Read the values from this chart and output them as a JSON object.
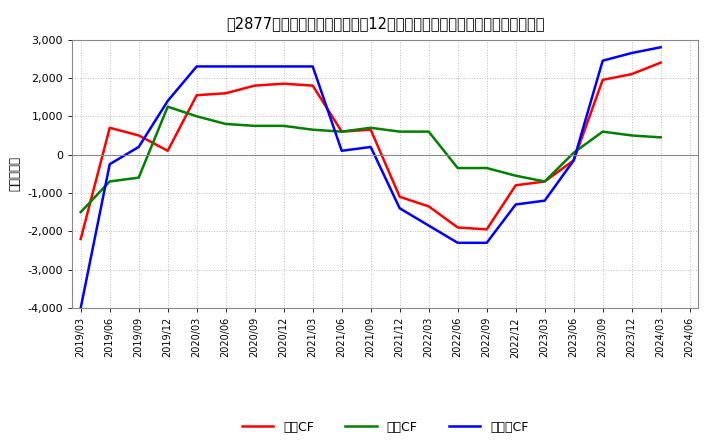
{
  "title2": "[ 2877 ]  キャッシュフローの12か月移動合計の対前年同期増減額の推移",
  "title_plain": "[2877]  キャッシュフローの12か月移動合計の対前年同期増減額の推移",
  "ylabel": "（百万円）",
  "ylim": [
    -4000,
    3000
  ],
  "yticks": [
    -4000,
    -3000,
    -2000,
    -1000,
    0,
    1000,
    2000,
    3000
  ],
  "x_labels": [
    "2019/03",
    "2019/06",
    "2019/09",
    "2019/12",
    "2020/03",
    "2020/06",
    "2020/09",
    "2020/12",
    "2021/03",
    "2021/06",
    "2021/09",
    "2021/12",
    "2022/03",
    "2022/06",
    "2022/09",
    "2022/12",
    "2023/03",
    "2023/06",
    "2023/09",
    "2023/12",
    "2024/03",
    "2024/06"
  ],
  "operating_cf": [
    -2200,
    700,
    500,
    100,
    1550,
    1600,
    1800,
    1850,
    1800,
    600,
    650,
    -1100,
    -1350,
    -1900,
    -1950,
    -800,
    -700,
    -150,
    1950,
    2100,
    2400,
    null
  ],
  "investing_cf": [
    -1500,
    -700,
    -600,
    1250,
    1000,
    800,
    750,
    750,
    650,
    600,
    700,
    600,
    600,
    -350,
    -350,
    -550,
    -700,
    50,
    600,
    500,
    450,
    null
  ],
  "free_cf": [
    -4000,
    -250,
    200,
    1400,
    2300,
    2300,
    2300,
    2300,
    2300,
    100,
    200,
    -1400,
    -1850,
    -2300,
    -2300,
    -1300,
    -1200,
    -150,
    2450,
    2650,
    2800,
    null
  ],
  "colors": {
    "operating": "#ff0000",
    "investing": "#008000",
    "free": "#0000ff"
  },
  "legend_labels": [
    "営業CF",
    "投資CF",
    "フリーCF"
  ],
  "background_color": "#ffffff",
  "grid_color": "#aaaaaa"
}
